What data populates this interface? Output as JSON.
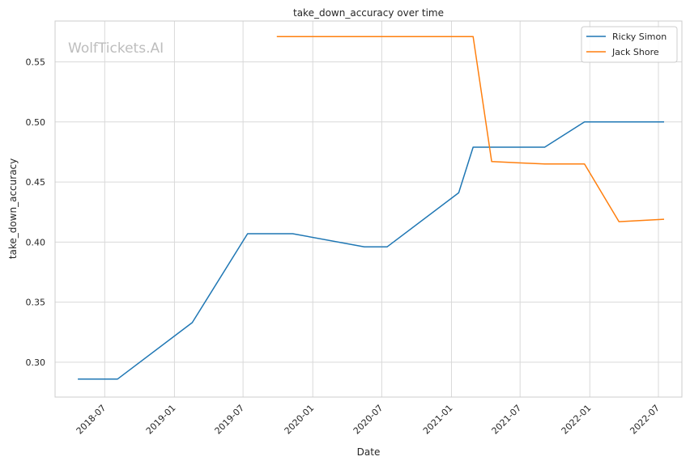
{
  "watermark": "WolfTickets.AI",
  "colors": {
    "Ricky Simon": "#1f77b4",
    "Jack Shore": "#ff7f0e",
    "grid": "#d9d9d9",
    "frame": "#cccccc",
    "text": "#262626"
  },
  "chart_data": {
    "type": "line",
    "title": "take_down_accuracy over time",
    "xlabel": "Date",
    "ylabel": "take_down_accuracy",
    "x_ticks": [
      "2018-07",
      "2019-01",
      "2019-07",
      "2020-01",
      "2020-07",
      "2021-01",
      "2021-07",
      "2022-01",
      "2022-07"
    ],
    "y_ticks": [
      "0.30",
      "0.35",
      "0.40",
      "0.45",
      "0.50",
      "0.55"
    ],
    "xlim": [
      "2018-02-20",
      "2022-09-01"
    ],
    "ylim": [
      0.271,
      0.584
    ],
    "grid": true,
    "legend_position": "top-right",
    "series": [
      {
        "name": "Ricky Simon",
        "points": [
          [
            "2018-04-21",
            0.286
          ],
          [
            "2018-08-04",
            0.286
          ],
          [
            "2019-02-17",
            0.333
          ],
          [
            "2019-07-13",
            0.407
          ],
          [
            "2019-11-09",
            0.407
          ],
          [
            "2020-05-16",
            0.396
          ],
          [
            "2020-07-15",
            0.396
          ],
          [
            "2021-01-20",
            0.441
          ],
          [
            "2021-02-27",
            0.479
          ],
          [
            "2021-09-04",
            0.479
          ],
          [
            "2021-12-18",
            0.5
          ],
          [
            "2022-07-16",
            0.5
          ]
        ]
      },
      {
        "name": "Jack Shore",
        "points": [
          [
            "2019-09-28",
            0.571
          ],
          [
            "2021-02-27",
            0.571
          ],
          [
            "2021-04-17",
            0.467
          ],
          [
            "2021-09-04",
            0.465
          ],
          [
            "2021-12-18",
            0.465
          ],
          [
            "2022-03-19",
            0.417
          ],
          [
            "2022-07-16",
            0.419
          ]
        ]
      }
    ]
  }
}
